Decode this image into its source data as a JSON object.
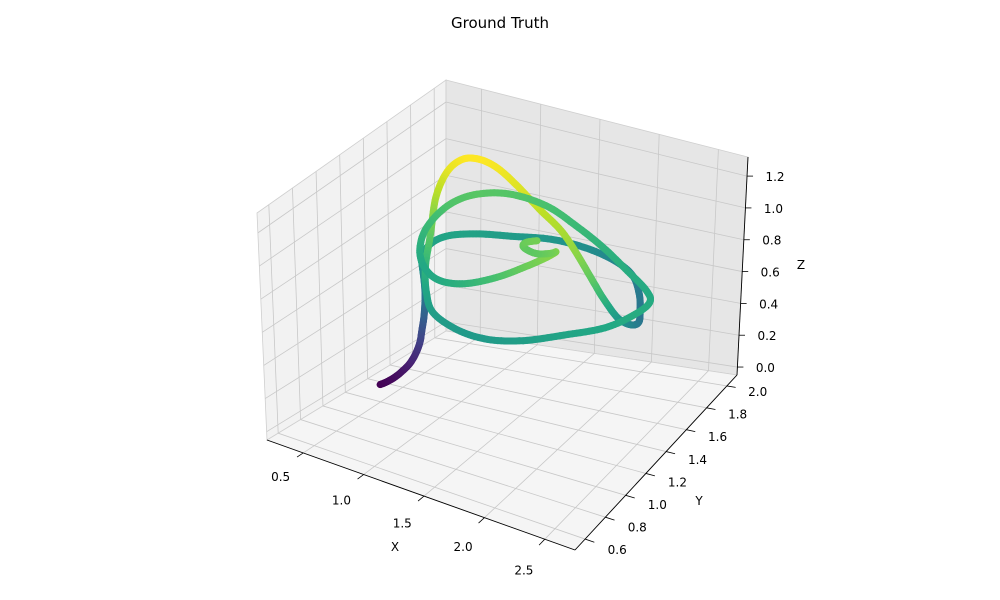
{
  "chart_data": {
    "type": "scatter3d",
    "title": "Ground Truth",
    "xlabel": "X",
    "ylabel": "Y",
    "zlabel": "Z",
    "x_ticks": [
      "0.5",
      "1.0",
      "1.5",
      "2.0",
      "2.5"
    ],
    "y_ticks": [
      "0.6",
      "0.8",
      "1.0",
      "1.2",
      "1.4",
      "1.6",
      "1.8",
      "2.0"
    ],
    "z_ticks": [
      "0.0",
      "0.2",
      "0.4",
      "0.6",
      "0.8",
      "1.0",
      "1.2"
    ],
    "xlim": [
      0.2,
      2.75
    ],
    "ylim": [
      0.5,
      2.1
    ],
    "zlim": [
      -0.05,
      1.32
    ],
    "colormap": "viridis",
    "grid": true,
    "series": [
      {
        "points": [
          [
            0.45,
            1.25,
            0.02
          ],
          [
            0.48,
            1.27,
            0.03
          ],
          [
            0.52,
            1.3,
            0.05
          ],
          [
            0.56,
            1.33,
            0.08
          ],
          [
            0.6,
            1.36,
            0.12
          ],
          [
            0.63,
            1.38,
            0.17
          ],
          [
            0.65,
            1.4,
            0.23
          ],
          [
            0.66,
            1.41,
            0.3
          ],
          [
            0.67,
            1.42,
            0.38
          ],
          [
            0.67,
            1.43,
            0.46
          ],
          [
            0.66,
            1.44,
            0.53
          ],
          [
            0.64,
            1.45,
            0.6
          ],
          [
            0.62,
            1.46,
            0.65
          ],
          [
            0.6,
            1.48,
            0.68
          ],
          [
            0.6,
            1.55,
            0.72
          ],
          [
            0.65,
            1.65,
            0.73
          ],
          [
            0.8,
            1.75,
            0.72
          ],
          [
            1.0,
            1.85,
            0.69
          ],
          [
            1.25,
            1.95,
            0.66
          ],
          [
            1.5,
            2.0,
            0.62
          ],
          [
            1.75,
            2.0,
            0.58
          ],
          [
            1.95,
            1.95,
            0.55
          ],
          [
            2.1,
            1.85,
            0.52
          ],
          [
            2.2,
            1.75,
            0.5
          ],
          [
            2.28,
            1.65,
            0.5
          ],
          [
            2.3,
            1.55,
            0.55
          ],
          [
            2.28,
            1.45,
            0.65
          ],
          [
            2.22,
            1.38,
            0.8
          ],
          [
            2.15,
            1.35,
            0.92
          ],
          [
            2.0,
            1.38,
            1.02
          ],
          [
            1.8,
            1.45,
            1.08
          ],
          [
            1.55,
            1.52,
            1.12
          ],
          [
            1.3,
            1.58,
            1.18
          ],
          [
            1.1,
            1.62,
            1.22
          ],
          [
            0.95,
            1.62,
            1.24
          ],
          [
            0.85,
            1.58,
            1.24
          ],
          [
            0.8,
            1.5,
            1.2
          ],
          [
            0.8,
            1.4,
            1.1
          ],
          [
            0.85,
            1.3,
            0.95
          ],
          [
            0.9,
            1.2,
            0.82
          ],
          [
            1.0,
            1.1,
            0.74
          ],
          [
            1.15,
            1.0,
            0.7
          ],
          [
            1.4,
            0.95,
            0.68
          ],
          [
            1.65,
            0.95,
            0.68
          ],
          [
            1.9,
            1.0,
            0.7
          ],
          [
            2.15,
            1.1,
            0.73
          ],
          [
            2.38,
            1.22,
            0.75
          ],
          [
            2.5,
            1.35,
            0.77
          ],
          [
            2.52,
            1.48,
            0.77
          ],
          [
            2.4,
            1.58,
            0.76
          ],
          [
            2.15,
            1.68,
            0.77
          ],
          [
            1.85,
            1.78,
            0.8
          ],
          [
            1.55,
            1.85,
            0.84
          ],
          [
            1.25,
            1.9,
            0.88
          ],
          [
            0.95,
            1.88,
            0.91
          ],
          [
            0.75,
            1.78,
            0.92
          ],
          [
            0.65,
            1.65,
            0.9
          ],
          [
            0.62,
            1.5,
            0.84
          ],
          [
            0.68,
            1.38,
            0.78
          ],
          [
            0.82,
            1.28,
            0.75
          ],
          [
            1.02,
            1.2,
            0.76
          ],
          [
            1.25,
            1.18,
            0.8
          ],
          [
            1.5,
            1.2,
            0.88
          ],
          [
            1.7,
            1.25,
            0.96
          ],
          [
            1.82,
            1.3,
            1.01
          ],
          [
            1.85,
            1.35,
            1.02
          ],
          [
            1.78,
            1.38,
            0.98
          ],
          [
            1.65,
            1.4,
            0.94
          ],
          [
            1.55,
            1.42,
            0.93
          ],
          [
            1.5,
            1.43,
            0.94
          ],
          [
            1.52,
            1.44,
            0.96
          ],
          [
            1.6,
            1.45,
            0.98
          ]
        ]
      }
    ]
  }
}
